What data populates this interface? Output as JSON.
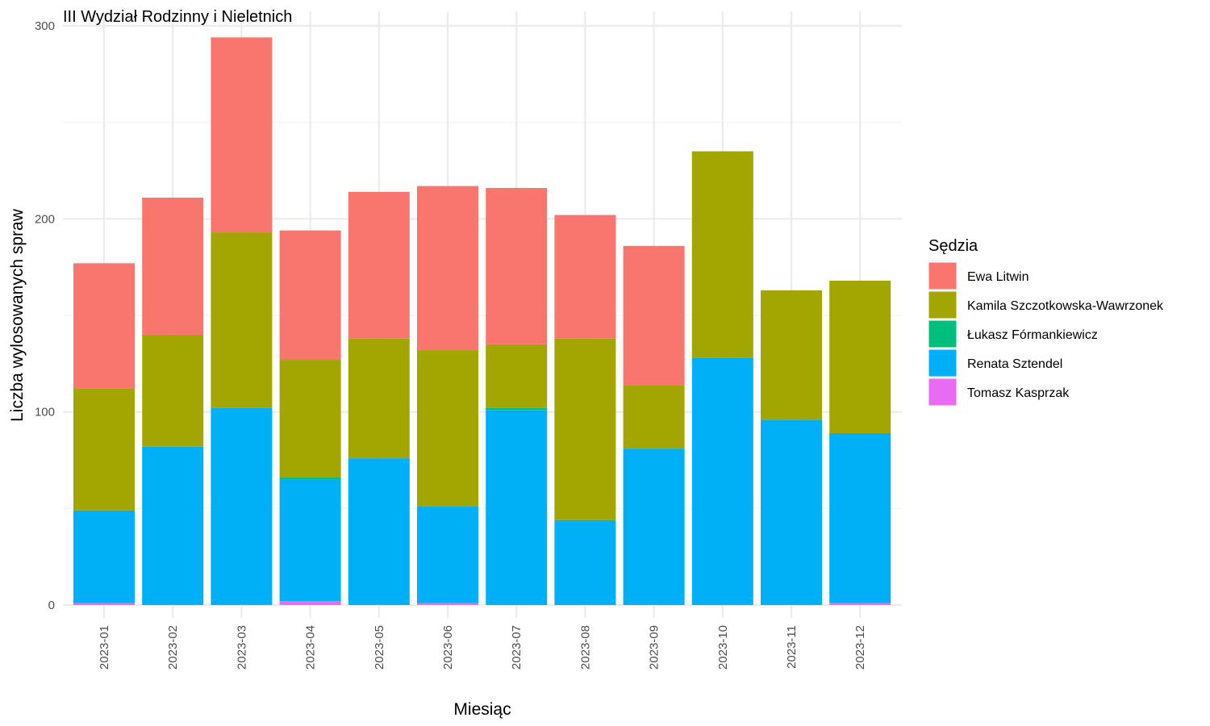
{
  "chart_data": {
    "type": "bar",
    "stacked": true,
    "title": "III Wydział Rodzinny i Nieletnich",
    "xlabel": "Miesiąc",
    "ylabel": "Liczba wylosowanych spraw",
    "ylim": [
      0,
      300
    ],
    "yticks": [
      0,
      100,
      200,
      300
    ],
    "grid": true,
    "legend_title": "Sędzia",
    "legend_position": "right",
    "categories": [
      "2023-01",
      "2023-02",
      "2023-03",
      "2023-04",
      "2023-05",
      "2023-06",
      "2023-07",
      "2023-08",
      "2023-09",
      "2023-10",
      "2023-11",
      "2023-12"
    ],
    "series": [
      {
        "name": "Ewa Litwin",
        "color": "#F8766D",
        "values": [
          65,
          71,
          101,
          67,
          76,
          85,
          81,
          64,
          72,
          0,
          0,
          0
        ]
      },
      {
        "name": "Kamila Szczotkowska-Wawrzonek",
        "color": "#A3A500",
        "values": [
          63,
          58,
          91,
          61,
          62,
          81,
          33,
          94,
          33,
          107,
          67,
          79
        ]
      },
      {
        "name": "Łukasz Fórmankiewicz",
        "color": "#00BF7D",
        "values": [
          0,
          0,
          0,
          1,
          0,
          0,
          1,
          0,
          0,
          0,
          0,
          0
        ]
      },
      {
        "name": "Renata Sztendel",
        "color": "#00B0F6",
        "values": [
          48,
          82,
          102,
          63,
          76,
          50,
          101,
          44,
          81,
          128,
          96,
          88
        ]
      },
      {
        "name": "Tomasz Kasprzak",
        "color": "#E76BF3",
        "values": [
          1,
          0,
          0,
          2,
          0,
          1,
          0,
          0,
          0,
          0,
          0,
          1
        ]
      }
    ]
  }
}
